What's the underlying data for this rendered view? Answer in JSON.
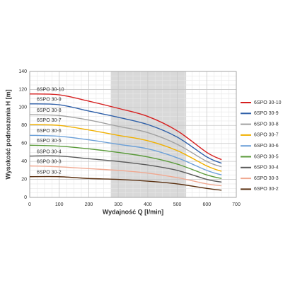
{
  "chart_data": {
    "type": "line",
    "x_label": "Wydajność Q [l/min]",
    "y_label": "Wysokość podnoszenia H [m]",
    "x": [
      0,
      100,
      200,
      300,
      400,
      500,
      600,
      650
    ],
    "xlim": [
      0,
      700
    ],
    "xticks": [
      0,
      100,
      200,
      300,
      400,
      500,
      600,
      700
    ],
    "ylim": [
      0,
      140
    ],
    "yticks": [
      0,
      20,
      40,
      60,
      80,
      100,
      120,
      140
    ],
    "grid": true,
    "shaded_region": [
      275,
      530
    ],
    "legend": "right",
    "series": [
      {
        "name": "6SPO 30-10",
        "color": "#d62020",
        "values": [
          115,
          114,
          107,
          99,
          90,
          74,
          50,
          42
        ]
      },
      {
        "name": "6SPO 30-9",
        "color": "#2e5fa8",
        "values": [
          104,
          103,
          96,
          89,
          81,
          67,
          45,
          38
        ]
      },
      {
        "name": "6SPO 30-8",
        "color": "#a0a0a0",
        "values": [
          92,
          91,
          86,
          79,
          72,
          59,
          40,
          34
        ]
      },
      {
        "name": "6SPO 30-7",
        "color": "#f0b000",
        "values": [
          81,
          80,
          75,
          69,
          63,
          52,
          35,
          29
        ]
      },
      {
        "name": "6SPO 30-6",
        "color": "#6ca0d8",
        "values": [
          69,
          68,
          64,
          59,
          54,
          44,
          30,
          25
        ]
      },
      {
        "name": "6SPO 30-5",
        "color": "#5a9a3a",
        "values": [
          58,
          57,
          54,
          50,
          45,
          37,
          25,
          21
        ]
      },
      {
        "name": "6SPO 30-4",
        "color": "#5a5a5a",
        "values": [
          46,
          46,
          43,
          40,
          36,
          30,
          20,
          17
        ]
      },
      {
        "name": "6SPO 30-3",
        "color": "#f0a890",
        "values": [
          35,
          34,
          32,
          30,
          27,
          22,
          15,
          13
        ]
      },
      {
        "name": "6SPO 30-2",
        "color": "#5a3010",
        "values": [
          23,
          23,
          21,
          20,
          18,
          15,
          10,
          8
        ]
      }
    ]
  }
}
